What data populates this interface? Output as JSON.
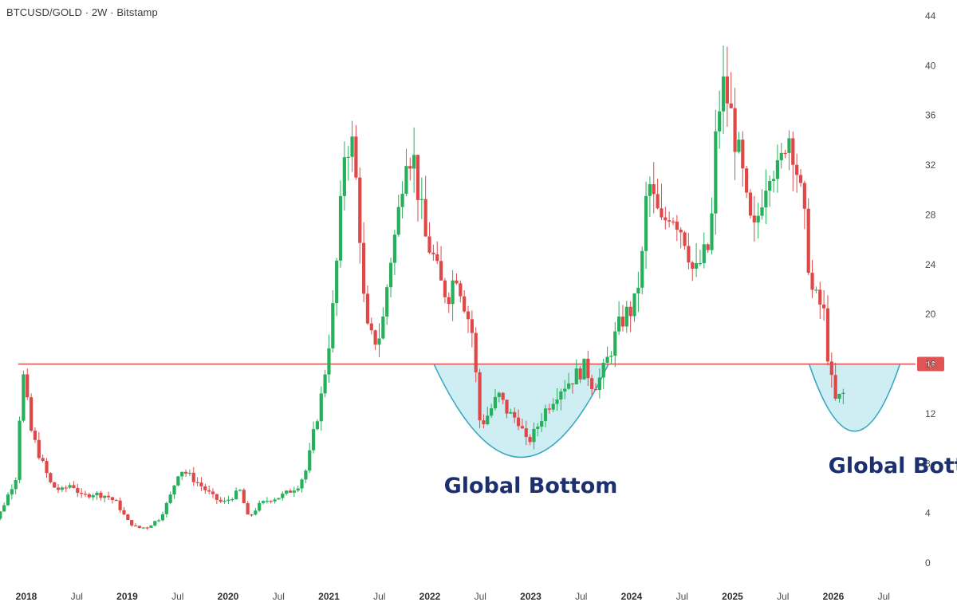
{
  "header": {
    "title": "BTCUSD/GOLD · 2W · Bitstamp"
  },
  "colors": {
    "up": "#26b05b",
    "down": "#e04848",
    "level_line": "#e05454",
    "bowl_fill": "#bfe8ef",
    "bowl_stroke": "#3aa7c4",
    "annotation": "#1c2f6e"
  },
  "chart_data": {
    "type": "candlestick",
    "title": "BTCUSD/GOLD · 2W · Bitstamp",
    "ylim": [
      0,
      44
    ],
    "y_ticks": [
      0,
      4,
      8,
      12,
      16,
      20,
      24,
      28,
      32,
      36,
      40,
      44
    ],
    "x_ticks": [
      {
        "label": "2018",
        "t": 2018.0,
        "bold": true
      },
      {
        "label": "Jul",
        "t": 2018.5,
        "bold": false
      },
      {
        "label": "2019",
        "t": 2019.0,
        "bold": true
      },
      {
        "label": "Jul",
        "t": 2019.5,
        "bold": false
      },
      {
        "label": "2020",
        "t": 2020.0,
        "bold": true
      },
      {
        "label": "Jul",
        "t": 2020.5,
        "bold": false
      },
      {
        "label": "2021",
        "t": 2021.0,
        "bold": true
      },
      {
        "label": "Jul",
        "t": 2021.5,
        "bold": false
      },
      {
        "label": "2022",
        "t": 2022.0,
        "bold": true
      },
      {
        "label": "Jul",
        "t": 2022.5,
        "bold": false
      },
      {
        "label": "2023",
        "t": 2023.0,
        "bold": true
      },
      {
        "label": "Jul",
        "t": 2023.5,
        "bold": false
      },
      {
        "label": "2024",
        "t": 2024.0,
        "bold": true
      },
      {
        "label": "Jul",
        "t": 2024.5,
        "bold": false
      },
      {
        "label": "2025",
        "t": 2025.0,
        "bold": true
      },
      {
        "label": "Jul",
        "t": 2025.5,
        "bold": false
      },
      {
        "label": "2026",
        "t": 2026.0,
        "bold": true
      },
      {
        "label": "Jul",
        "t": 2026.5,
        "bold": false
      }
    ],
    "horizontal_level": {
      "value": 16,
      "label": "16",
      "from_t": 2017.92
    },
    "bowls": [
      {
        "from_t": 2022.04,
        "to_t": 2023.77,
        "top": 16,
        "bottom": 8.5
      },
      {
        "from_t": 2025.76,
        "to_t": 2026.66,
        "top": 16,
        "bottom": 10.6
      }
    ],
    "annotations": [
      {
        "text": "Global Bottom",
        "t": 2023.0,
        "y": 6.3
      },
      {
        "text": "Global Bottom",
        "t": 2025.95,
        "y": 7.9
      }
    ],
    "price_path": [
      [
        2017.55,
        1.6
      ],
      [
        2017.75,
        4.2
      ],
      [
        2017.9,
        7.0
      ],
      [
        2017.96,
        15.6
      ],
      [
        2018.05,
        10.5
      ],
      [
        2018.15,
        8.2
      ],
      [
        2018.25,
        6.2
      ],
      [
        2018.35,
        5.8
      ],
      [
        2018.45,
        6.4
      ],
      [
        2018.55,
        5.3
      ],
      [
        2018.65,
        5.6
      ],
      [
        2018.8,
        5.4
      ],
      [
        2018.9,
        4.8
      ],
      [
        2019.0,
        3.4
      ],
      [
        2019.1,
        2.8
      ],
      [
        2019.2,
        2.9
      ],
      [
        2019.32,
        3.6
      ],
      [
        2019.42,
        5.2
      ],
      [
        2019.52,
        7.6
      ],
      [
        2019.62,
        7.0
      ],
      [
        2019.72,
        6.3
      ],
      [
        2019.85,
        5.3
      ],
      [
        2019.95,
        4.8
      ],
      [
        2020.05,
        5.4
      ],
      [
        2020.12,
        5.8
      ],
      [
        2020.2,
        3.6
      ],
      [
        2020.3,
        4.6
      ],
      [
        2020.4,
        5.1
      ],
      [
        2020.5,
        5.3
      ],
      [
        2020.6,
        5.7
      ],
      [
        2020.7,
        6.3
      ],
      [
        2020.78,
        7.6
      ],
      [
        2020.85,
        10.5
      ],
      [
        2020.92,
        13.2
      ],
      [
        2020.98,
        16.5
      ],
      [
        2021.04,
        20.5
      ],
      [
        2021.1,
        26.5
      ],
      [
        2021.16,
        34.0
      ],
      [
        2021.24,
        33.5
      ],
      [
        2021.3,
        27.5
      ],
      [
        2021.36,
        19.0
      ],
      [
        2021.44,
        17.8
      ],
      [
        2021.52,
        18.5
      ],
      [
        2021.6,
        24.0
      ],
      [
        2021.68,
        27.5
      ],
      [
        2021.76,
        33.5
      ],
      [
        2021.84,
        32.5
      ],
      [
        2021.9,
        29.0
      ],
      [
        2021.96,
        26.0
      ],
      [
        2022.02,
        25.0
      ],
      [
        2022.1,
        22.5
      ],
      [
        2022.18,
        21.5
      ],
      [
        2022.26,
        23.5
      ],
      [
        2022.34,
        21.0
      ],
      [
        2022.42,
        18.5
      ],
      [
        2022.5,
        11.0
      ],
      [
        2022.58,
        12.0
      ],
      [
        2022.68,
        13.5
      ],
      [
        2022.78,
        12.0
      ],
      [
        2022.88,
        11.5
      ],
      [
        2022.96,
        9.6
      ],
      [
        2023.04,
        10.5
      ],
      [
        2023.12,
        12.0
      ],
      [
        2023.2,
        13.0
      ],
      [
        2023.28,
        14.0
      ],
      [
        2023.38,
        14.6
      ],
      [
        2023.46,
        15.2
      ],
      [
        2023.54,
        15.8
      ],
      [
        2023.62,
        14.2
      ],
      [
        2023.7,
        15.0
      ],
      [
        2023.78,
        16.8
      ],
      [
        2023.86,
        18.8
      ],
      [
        2023.94,
        20.0
      ],
      [
        2024.02,
        20.5
      ],
      [
        2024.1,
        24.0
      ],
      [
        2024.16,
        31.0
      ],
      [
        2024.22,
        29.0
      ],
      [
        2024.3,
        27.0
      ],
      [
        2024.38,
        28.5
      ],
      [
        2024.46,
        27.5
      ],
      [
        2024.54,
        26.0
      ],
      [
        2024.62,
        23.0
      ],
      [
        2024.7,
        24.5
      ],
      [
        2024.78,
        25.5
      ],
      [
        2024.84,
        35.0
      ],
      [
        2024.9,
        38.5
      ],
      [
        2024.96,
        37.0
      ],
      [
        2025.02,
        34.5
      ],
      [
        2025.1,
        31.0
      ],
      [
        2025.16,
        27.5
      ],
      [
        2025.22,
        26.5
      ],
      [
        2025.3,
        30.0
      ],
      [
        2025.38,
        32.5
      ],
      [
        2025.46,
        31.0
      ],
      [
        2025.54,
        35.0
      ],
      [
        2025.6,
        33.5
      ],
      [
        2025.66,
        30.5
      ],
      [
        2025.72,
        27.0
      ],
      [
        2025.78,
        22.0
      ],
      [
        2025.84,
        21.0
      ],
      [
        2025.9,
        20.5
      ],
      [
        2025.96,
        15.5
      ],
      [
        2026.02,
        13.0
      ],
      [
        2026.1,
        13.6
      ]
    ]
  }
}
